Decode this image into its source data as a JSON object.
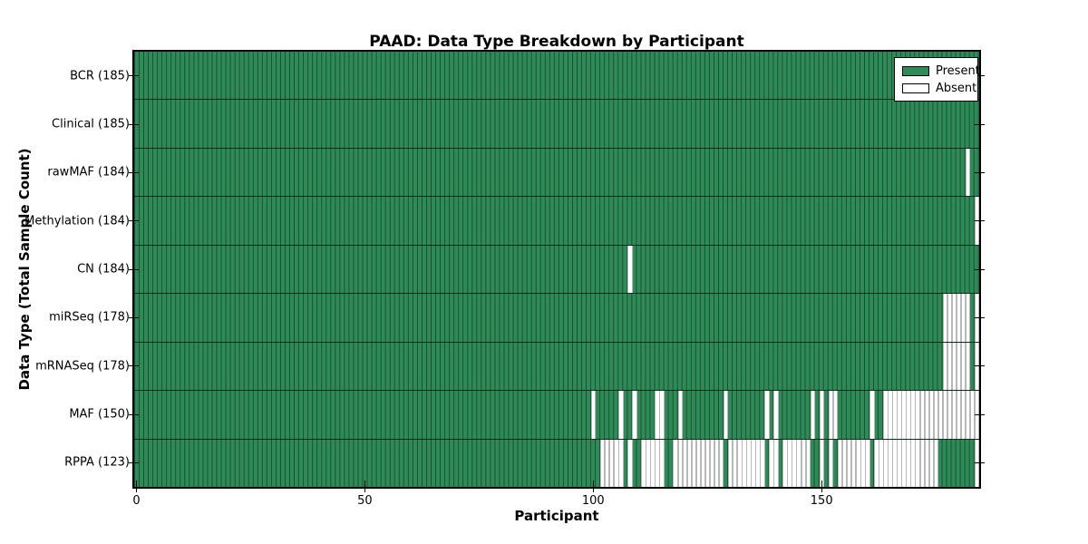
{
  "chart_data": {
    "type": "heatmap",
    "title": "PAAD: Data Type Breakdown by Participant",
    "xlabel": "Participant",
    "ylabel": "Data Type (Total Sample Count)",
    "x_ticks": [
      0,
      50,
      100,
      150
    ],
    "n_participants": 185,
    "x_range": [
      0,
      185
    ],
    "legend_position": "upper right",
    "legend": [
      {
        "label": "Present",
        "color": "#2e8b57"
      },
      {
        "label": "Absent",
        "color": "#ffffff"
      }
    ],
    "cell_states": {
      "present": "green",
      "absent": "white"
    },
    "rows": [
      {
        "label": "BCR (185)",
        "data_type": "BCR",
        "present_count": 185,
        "absent_participants": []
      },
      {
        "label": "Clinical (185)",
        "data_type": "Clinical",
        "present_count": 185,
        "absent_participants": []
      },
      {
        "label": "rawMAF (184)",
        "data_type": "rawMAF",
        "present_count": 184,
        "absent_participants": [
          182
        ]
      },
      {
        "label": "Methylation (184)",
        "data_type": "Methylation",
        "present_count": 184,
        "absent_participants": [
          184
        ]
      },
      {
        "label": "CN (184)",
        "data_type": "CN",
        "present_count": 184,
        "absent_participants": [
          108
        ]
      },
      {
        "label": "miRSeq (178)",
        "data_type": "miRSeq",
        "present_count": 178,
        "absent_participants": [
          177,
          178,
          179,
          180,
          181,
          182,
          184
        ]
      },
      {
        "label": "mRNASeq (178)",
        "data_type": "mRNASeq",
        "present_count": 178,
        "absent_participants": [
          177,
          178,
          179,
          180,
          181,
          182,
          184
        ]
      },
      {
        "label": "MAF (150)",
        "data_type": "MAF",
        "present_count": 150,
        "absent_participants": [
          100,
          106,
          109,
          114,
          115,
          119,
          129,
          138,
          140,
          148,
          150,
          152,
          153,
          161,
          164,
          165,
          166,
          167,
          168,
          169,
          170,
          171,
          172,
          173,
          174,
          175,
          176,
          177,
          178,
          179,
          180,
          181,
          182,
          183,
          184
        ]
      },
      {
        "label": "RPPA (123)",
        "data_type": "RPPA",
        "present_count": 123,
        "absent_participants": [
          102,
          103,
          104,
          105,
          106,
          108,
          111,
          112,
          113,
          114,
          115,
          118,
          119,
          120,
          121,
          122,
          123,
          124,
          125,
          126,
          127,
          128,
          130,
          131,
          132,
          133,
          134,
          135,
          136,
          137,
          139,
          140,
          142,
          143,
          144,
          145,
          146,
          147,
          150,
          152,
          154,
          155,
          156,
          157,
          158,
          159,
          160,
          162,
          163,
          164,
          165,
          166,
          167,
          168,
          169,
          170,
          171,
          172,
          173,
          174,
          175,
          184
        ]
      }
    ]
  },
  "colors": {
    "present_fill": "#2e8b57",
    "absent_fill": "#ffffff",
    "cell_edge_on_green": "rgba(0,0,0,0.45)",
    "cell_edge_on_white": "#b8b8b8",
    "frame": "#000000"
  }
}
